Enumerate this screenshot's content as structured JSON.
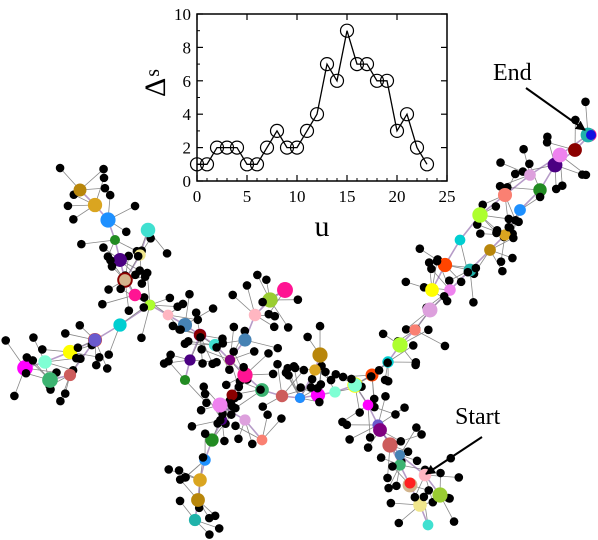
{
  "inset": {
    "xlabel": "u",
    "ylabel_main": "Δ",
    "ylabel_sub": "s",
    "xticks": [
      "0",
      "5",
      "10",
      "15",
      "20",
      "25"
    ],
    "yticks": [
      "0",
      "2",
      "4",
      "6",
      "8",
      "10"
    ]
  },
  "annotations": {
    "end_label": "End",
    "start_label": "Start"
  },
  "chart_data": {
    "type": "line",
    "xlabel": "u",
    "ylabel": "Δs",
    "xlim": [
      0,
      25
    ],
    "ylim": [
      0,
      10
    ],
    "grid": false,
    "marker": "open-circle",
    "x": [
      0,
      1,
      2,
      3,
      4,
      5,
      6,
      7,
      8,
      9,
      10,
      11,
      12,
      13,
      14,
      15,
      16,
      17,
      18,
      19,
      20,
      21,
      22,
      23
    ],
    "y": [
      1,
      1,
      2,
      2,
      2,
      1,
      1,
      2,
      3,
      2,
      2,
      3,
      4,
      7,
      6,
      9,
      7,
      7,
      6,
      6,
      3,
      4,
      2,
      1
    ]
  }
}
